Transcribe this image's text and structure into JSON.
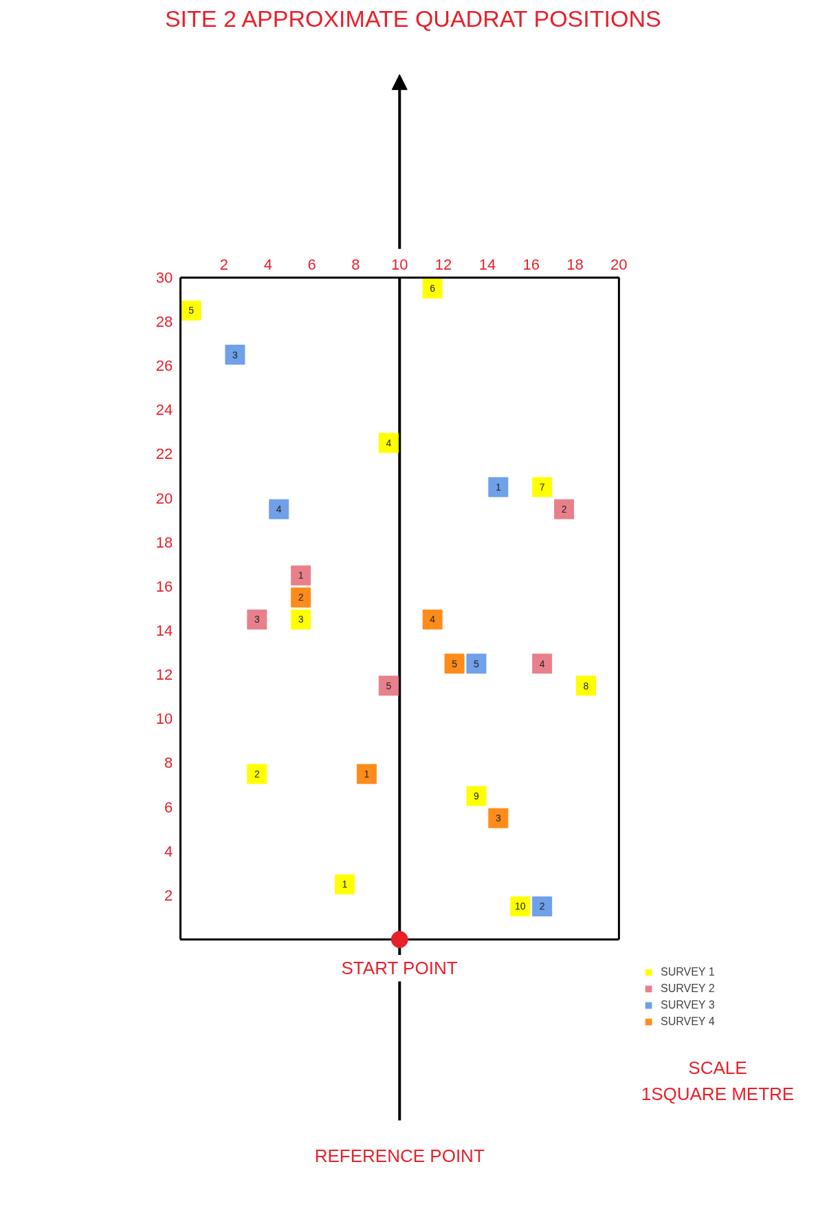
{
  "chart_data": {
    "type": "scatter",
    "title": "SITE 2 APPROXIMATE QUADRAT POSITIONS",
    "xlim": [
      0,
      20
    ],
    "ylim": [
      0,
      30
    ],
    "xticks": [
      2,
      4,
      6,
      8,
      10,
      12,
      14,
      16,
      18,
      20
    ],
    "yticks": [
      2,
      4,
      6,
      8,
      10,
      12,
      14,
      16,
      18,
      20,
      22,
      24,
      26,
      28,
      30
    ],
    "marker": "square",
    "legend": "bottom right",
    "ref_lines": [
      {
        "axis": "x",
        "value": 10,
        "color": "#000000"
      }
    ],
    "annotations": [
      {
        "text": "START POINT",
        "x": 10,
        "y": 0
      },
      "REFERENCE POINT",
      "SCALE",
      "1SQUARE METRE",
      {
        "text": "1",
        "x": 7.5,
        "y": 2.5
      },
      {
        "text": "2",
        "x": 3.5,
        "y": 7.5
      },
      {
        "text": "3",
        "x": 5.5,
        "y": 14.5
      },
      {
        "text": "4",
        "x": 9.5,
        "y": 22.5
      },
      {
        "text": "5",
        "x": 0.5,
        "y": 28.5
      },
      {
        "text": "6",
        "x": 11.5,
        "y": 29.5
      },
      {
        "text": "7",
        "x": 16.5,
        "y": 20.5
      },
      {
        "text": "8",
        "x": 18.5,
        "y": 11.5
      },
      {
        "text": "9",
        "x": 13.5,
        "y": 6.5
      },
      {
        "text": "10",
        "x": 15.5,
        "y": 1.5
      },
      {
        "text": "1",
        "x": 5.5,
        "y": 16.5
      },
      {
        "text": "2",
        "x": 17.5,
        "y": 19.5
      },
      {
        "text": "3",
        "x": 3.5,
        "y": 14.5
      },
      {
        "text": "4",
        "x": 16.5,
        "y": 12.5
      },
      {
        "text": "5",
        "x": 9.5,
        "y": 11.5
      },
      {
        "text": "1",
        "x": 14.5,
        "y": 20.5
      },
      {
        "text": "2",
        "x": 16.5,
        "y": 1.5
      },
      {
        "text": "3",
        "x": 2.5,
        "y": 26.5
      },
      {
        "text": "4",
        "x": 4.5,
        "y": 19.5
      },
      {
        "text": "5",
        "x": 13.5,
        "y": 12.5
      },
      {
        "text": "1",
        "x": 8.5,
        "y": 7.5
      },
      {
        "text": "2",
        "x": 5.5,
        "y": 15.5
      },
      {
        "text": "3",
        "x": 14.5,
        "y": 5.5
      },
      {
        "text": "4",
        "x": 11.5,
        "y": 14.5
      },
      {
        "text": "5",
        "x": 12.5,
        "y": 12.5
      }
    ],
    "series": [
      {
        "name": "SURVEY 1",
        "color": "#ffff00",
        "x": [
          7.5,
          3.5,
          5.5,
          9.5,
          0.5,
          11.5,
          16.5,
          18.5,
          13.5,
          15.5
        ],
        "values": [
          2.5,
          7.5,
          14.5,
          22.5,
          28.5,
          29.5,
          20.5,
          11.5,
          6.5,
          1.5
        ]
      },
      {
        "name": "SURVEY 2",
        "color": "#e8808c",
        "x": [
          5.5,
          17.5,
          3.5,
          16.5,
          9.5
        ],
        "values": [
          16.5,
          19.5,
          14.5,
          12.5,
          11.5
        ]
      },
      {
        "name": "SURVEY 3",
        "color": "#6fa0e8",
        "x": [
          14.5,
          16.5,
          2.5,
          4.5,
          13.5
        ],
        "values": [
          20.5,
          1.5,
          26.5,
          19.5,
          12.5
        ]
      },
      {
        "name": "SURVEY 4",
        "color": "#ff8c1a",
        "x": [
          8.5,
          5.5,
          14.5,
          11.5,
          12.5
        ],
        "values": [
          7.5,
          15.5,
          5.5,
          14.5,
          12.5
        ]
      },
      {
        "color": "#e8202a",
        "marker": "circle",
        "x": [
          10
        ],
        "values": [
          0
        ]
      }
    ]
  }
}
